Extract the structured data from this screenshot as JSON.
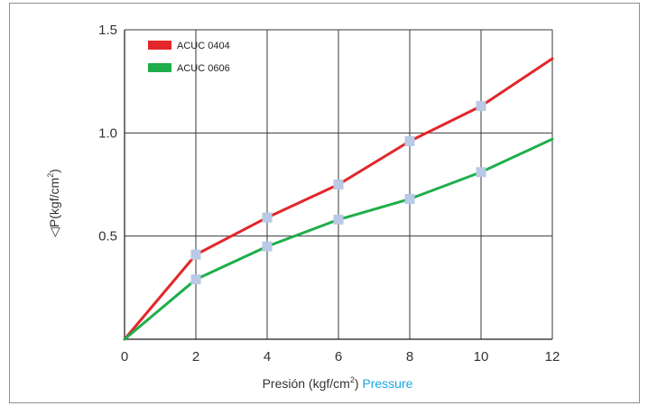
{
  "chart_data": {
    "type": "line",
    "xlabel": {
      "main": "Presión (kgf/cm",
      "sup": "2",
      "close": ")",
      "highlight": "Pressure"
    },
    "ylabel": {
      "main": "◁P(kgf/cm",
      "sup": "2",
      "close": ")"
    },
    "xlim": [
      0,
      12
    ],
    "ylim": [
      0,
      1.5
    ],
    "x_ticks": [
      0,
      2,
      4,
      6,
      8,
      10,
      12
    ],
    "x_tick_labels": [
      "0",
      "2",
      "4",
      "6",
      "8",
      "10",
      "12"
    ],
    "y_ticks": [
      0.5,
      1.0,
      1.5
    ],
    "y_tick_labels": [
      "0.5",
      "1.0",
      "1.5"
    ],
    "grid": true,
    "legend_position": "top-left",
    "series": [
      {
        "name": "ACUC 0404",
        "color": "#e3262b",
        "x": [
          0,
          2,
          4,
          6,
          8,
          10,
          12
        ],
        "y": [
          0,
          0.41,
          0.59,
          0.75,
          0.96,
          1.13,
          1.36
        ],
        "markers_x": [
          2,
          4,
          6,
          8,
          10
        ]
      },
      {
        "name": "ACUC 0606",
        "color": "#1fae4b",
        "x": [
          0,
          2,
          4,
          6,
          8,
          10,
          12
        ],
        "y": [
          0,
          0.29,
          0.45,
          0.58,
          0.68,
          0.81,
          0.97
        ],
        "markers_x": [
          2,
          4,
          6,
          8,
          10
        ]
      }
    ],
    "marker_color": "#b9c9e6",
    "highlight_color": "#1aa7e0"
  }
}
